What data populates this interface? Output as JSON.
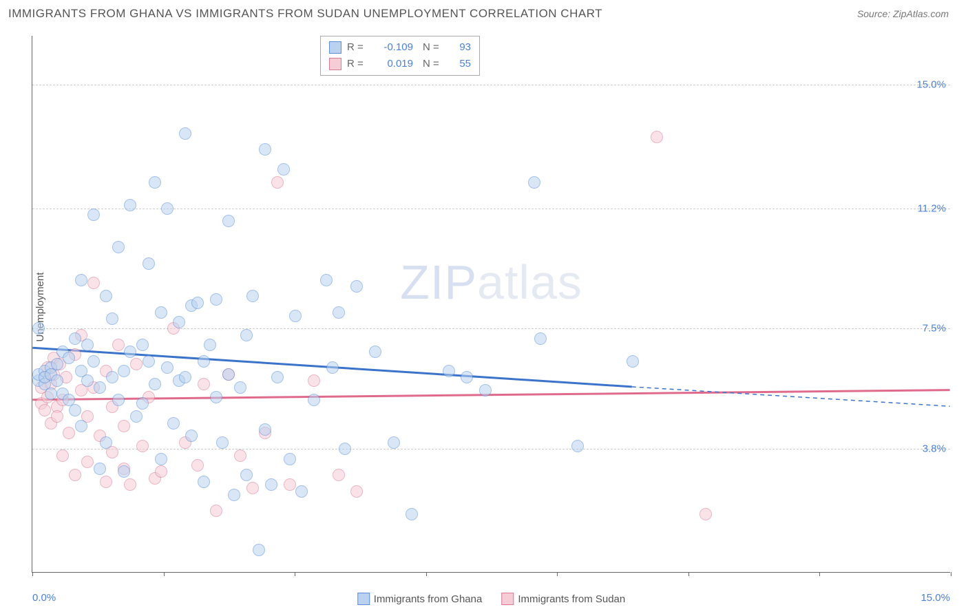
{
  "header": {
    "title": "IMMIGRANTS FROM GHANA VS IMMIGRANTS FROM SUDAN UNEMPLOYMENT CORRELATION CHART",
    "source_prefix": "Source: ",
    "source": "ZipAtlas.com"
  },
  "chart": {
    "type": "scatter",
    "ylabel": "Unemployment",
    "xlim": [
      0.0,
      15.0
    ],
    "ylim": [
      0.0,
      16.5
    ],
    "xtick_labels": {
      "min": "0.0%",
      "max": "15.0%"
    },
    "xticks_count": 8,
    "ytick_labels": [
      "3.8%",
      "7.5%",
      "11.2%",
      "15.0%"
    ],
    "ytick_values": [
      3.8,
      7.5,
      11.2,
      15.0
    ],
    "grid_color": "#cccccc",
    "axis_color": "#666666",
    "background_color": "#ffffff",
    "label_color": "#4a7fd8",
    "watermark": "ZIPatlas",
    "point_radius": 9,
    "point_opacity": 0.55,
    "series": [
      {
        "name": "Immigrants from Ghana",
        "fill": "#bad2f0",
        "stroke": "#5a8fd6",
        "line_color": "#3a73c9",
        "line_width": 3,
        "R": "-0.109",
        "N": "93",
        "trend": {
          "x1": 0.0,
          "y1": 6.9,
          "x2": 9.8,
          "y2": 5.7,
          "dash_to_x": 15.0,
          "dash_to_y": 5.1
        },
        "points": [
          [
            0.1,
            7.5
          ],
          [
            0.1,
            5.9
          ],
          [
            0.1,
            6.1
          ],
          [
            0.2,
            6.2
          ],
          [
            0.2,
            5.8
          ],
          [
            0.2,
            6.0
          ],
          [
            0.3,
            6.3
          ],
          [
            0.3,
            5.5
          ],
          [
            0.3,
            6.1
          ],
          [
            0.4,
            5.9
          ],
          [
            0.4,
            6.4
          ],
          [
            0.5,
            5.5
          ],
          [
            0.5,
            6.8
          ],
          [
            0.6,
            5.3
          ],
          [
            0.6,
            6.6
          ],
          [
            0.7,
            7.2
          ],
          [
            0.7,
            5.0
          ],
          [
            0.8,
            4.5
          ],
          [
            0.8,
            6.2
          ],
          [
            0.8,
            9.0
          ],
          [
            0.9,
            5.9
          ],
          [
            0.9,
            7.0
          ],
          [
            1.0,
            11.0
          ],
          [
            1.0,
            6.5
          ],
          [
            1.1,
            3.2
          ],
          [
            1.1,
            5.7
          ],
          [
            1.2,
            4.0
          ],
          [
            1.2,
            8.5
          ],
          [
            1.3,
            7.8
          ],
          [
            1.3,
            6.0
          ],
          [
            1.4,
            10.0
          ],
          [
            1.4,
            5.3
          ],
          [
            1.5,
            6.2
          ],
          [
            1.5,
            3.1
          ],
          [
            1.6,
            11.3
          ],
          [
            1.6,
            6.8
          ],
          [
            1.7,
            4.8
          ],
          [
            1.8,
            7.0
          ],
          [
            1.8,
            5.2
          ],
          [
            1.9,
            9.5
          ],
          [
            1.9,
            6.5
          ],
          [
            2.0,
            12.0
          ],
          [
            2.0,
            5.8
          ],
          [
            2.1,
            8.0
          ],
          [
            2.1,
            3.5
          ],
          [
            2.2,
            11.2
          ],
          [
            2.2,
            6.3
          ],
          [
            2.3,
            4.6
          ],
          [
            2.4,
            7.7
          ],
          [
            2.4,
            5.9
          ],
          [
            2.5,
            13.5
          ],
          [
            2.5,
            6.0
          ],
          [
            2.6,
            8.2
          ],
          [
            2.6,
            4.2
          ],
          [
            2.7,
            8.3
          ],
          [
            2.8,
            2.8
          ],
          [
            2.8,
            6.5
          ],
          [
            2.9,
            7.0
          ],
          [
            3.0,
            5.4
          ],
          [
            3.0,
            8.4
          ],
          [
            3.1,
            4.0
          ],
          [
            3.2,
            10.8
          ],
          [
            3.2,
            6.1
          ],
          [
            3.3,
            2.4
          ],
          [
            3.4,
            5.7
          ],
          [
            3.5,
            7.3
          ],
          [
            3.5,
            3.0
          ],
          [
            3.6,
            8.5
          ],
          [
            3.7,
            0.7
          ],
          [
            3.8,
            4.4
          ],
          [
            3.8,
            13.0
          ],
          [
            3.9,
            2.7
          ],
          [
            4.0,
            6.0
          ],
          [
            4.1,
            12.4
          ],
          [
            4.2,
            3.5
          ],
          [
            4.3,
            7.9
          ],
          [
            4.4,
            2.5
          ],
          [
            4.6,
            5.3
          ],
          [
            4.8,
            9.0
          ],
          [
            4.9,
            6.3
          ],
          [
            5.0,
            8.0
          ],
          [
            5.1,
            3.8
          ],
          [
            5.3,
            8.8
          ],
          [
            5.6,
            6.8
          ],
          [
            5.9,
            4.0
          ],
          [
            6.2,
            1.8
          ],
          [
            6.8,
            6.2
          ],
          [
            7.1,
            6.0
          ],
          [
            7.4,
            5.6
          ],
          [
            8.2,
            12.0
          ],
          [
            8.3,
            7.2
          ],
          [
            8.9,
            3.9
          ],
          [
            9.8,
            6.5
          ]
        ]
      },
      {
        "name": "Immigrants from Sudan",
        "fill": "#f6cdd6",
        "stroke": "#d87a94",
        "line_color": "#e06a8c",
        "line_width": 3,
        "R": "0.019",
        "N": "55",
        "trend": {
          "x1": 0.0,
          "y1": 5.3,
          "x2": 15.0,
          "y2": 5.6
        },
        "points": [
          [
            0.15,
            5.2
          ],
          [
            0.15,
            5.7
          ],
          [
            0.2,
            6.0
          ],
          [
            0.2,
            5.0
          ],
          [
            0.25,
            5.4
          ],
          [
            0.25,
            6.3
          ],
          [
            0.3,
            4.6
          ],
          [
            0.3,
            5.8
          ],
          [
            0.35,
            6.1
          ],
          [
            0.35,
            6.6
          ],
          [
            0.4,
            5.1
          ],
          [
            0.4,
            4.8
          ],
          [
            0.45,
            6.4
          ],
          [
            0.5,
            3.6
          ],
          [
            0.5,
            5.3
          ],
          [
            0.55,
            6.0
          ],
          [
            0.6,
            4.3
          ],
          [
            0.7,
            6.7
          ],
          [
            0.7,
            3.0
          ],
          [
            0.8,
            5.6
          ],
          [
            0.8,
            7.3
          ],
          [
            0.9,
            4.8
          ],
          [
            0.9,
            3.4
          ],
          [
            1.0,
            8.9
          ],
          [
            1.0,
            5.7
          ],
          [
            1.1,
            4.2
          ],
          [
            1.2,
            2.8
          ],
          [
            1.2,
            6.2
          ],
          [
            1.3,
            3.7
          ],
          [
            1.3,
            5.1
          ],
          [
            1.4,
            7.0
          ],
          [
            1.5,
            3.2
          ],
          [
            1.5,
            4.5
          ],
          [
            1.6,
            2.7
          ],
          [
            1.7,
            6.4
          ],
          [
            1.8,
            3.9
          ],
          [
            1.9,
            5.4
          ],
          [
            2.0,
            2.9
          ],
          [
            2.1,
            3.1
          ],
          [
            2.3,
            7.5
          ],
          [
            2.5,
            4.0
          ],
          [
            2.7,
            3.3
          ],
          [
            2.8,
            5.8
          ],
          [
            3.0,
            1.9
          ],
          [
            3.2,
            6.1
          ],
          [
            3.4,
            3.6
          ],
          [
            3.6,
            2.6
          ],
          [
            3.8,
            4.3
          ],
          [
            4.0,
            12.0
          ],
          [
            4.2,
            2.7
          ],
          [
            4.6,
            5.9
          ],
          [
            5.0,
            3.0
          ],
          [
            5.3,
            2.5
          ],
          [
            10.2,
            13.4
          ],
          [
            11.0,
            1.8
          ]
        ]
      }
    ],
    "legend_labels": {
      "R_prefix": "R =",
      "N_prefix": "N ="
    }
  }
}
